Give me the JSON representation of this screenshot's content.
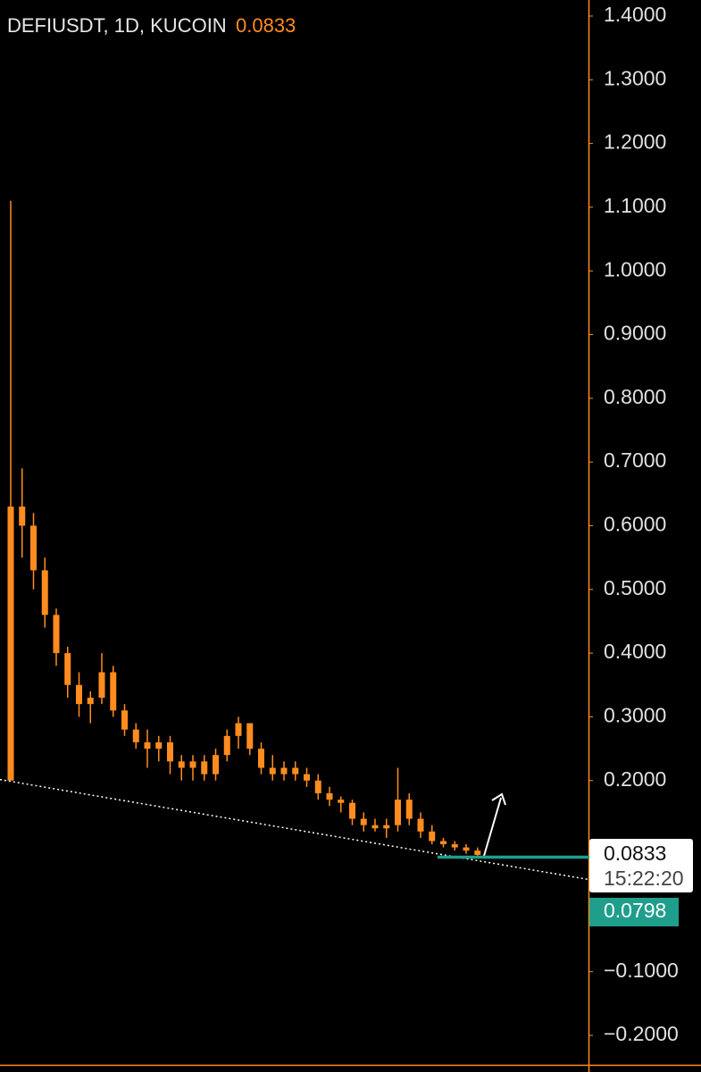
{
  "chart_data": {
    "type": "candlestick",
    "title": "DEFIUSDT, 1D, KUCOIN",
    "last_price": 0.0833,
    "last_price_label": "0.0833",
    "countdown": "15:22:20",
    "level": 0.0798,
    "level_label": "0.0798",
    "color": "#ff8c1f",
    "level_color": "#1f9e8c",
    "trendline": [
      0.2015,
      0.0445
    ],
    "open": [
      0.2,
      0.63,
      0.6,
      0.53,
      0.46,
      0.4,
      0.35,
      0.32,
      0.33,
      0.37,
      0.31,
      0.28,
      0.26,
      0.25,
      0.26,
      0.23,
      0.22,
      0.23,
      0.21,
      0.24,
      0.27,
      0.29,
      0.25,
      0.22,
      0.21,
      0.22,
      0.21,
      0.2,
      0.18,
      0.17,
      0.165,
      0.14,
      0.13,
      0.125,
      0.13,
      0.17,
      0.14,
      0.12,
      0.105,
      0.1,
      0.095,
      0.09
    ],
    "high": [
      1.11,
      0.69,
      0.62,
      0.55,
      0.47,
      0.41,
      0.37,
      0.34,
      0.4,
      0.38,
      0.32,
      0.29,
      0.28,
      0.27,
      0.27,
      0.24,
      0.24,
      0.24,
      0.25,
      0.28,
      0.3,
      0.29,
      0.26,
      0.24,
      0.23,
      0.23,
      0.22,
      0.21,
      0.19,
      0.175,
      0.17,
      0.15,
      0.14,
      0.14,
      0.22,
      0.18,
      0.15,
      0.13,
      0.11,
      0.105,
      0.1,
      0.095
    ],
    "low": [
      0.2,
      0.55,
      0.5,
      0.44,
      0.38,
      0.33,
      0.3,
      0.29,
      0.32,
      0.3,
      0.27,
      0.25,
      0.22,
      0.23,
      0.21,
      0.2,
      0.2,
      0.2,
      0.2,
      0.23,
      0.25,
      0.24,
      0.21,
      0.2,
      0.2,
      0.2,
      0.19,
      0.17,
      0.16,
      0.15,
      0.13,
      0.12,
      0.12,
      0.11,
      0.12,
      0.13,
      0.11,
      0.1,
      0.095,
      0.09,
      0.085,
      0.08
    ],
    "close": [
      0.63,
      0.6,
      0.53,
      0.46,
      0.4,
      0.35,
      0.32,
      0.33,
      0.37,
      0.31,
      0.28,
      0.26,
      0.25,
      0.26,
      0.23,
      0.22,
      0.23,
      0.21,
      0.24,
      0.27,
      0.29,
      0.25,
      0.22,
      0.21,
      0.22,
      0.21,
      0.2,
      0.18,
      0.17,
      0.165,
      0.14,
      0.13,
      0.125,
      0.13,
      0.17,
      0.14,
      0.12,
      0.105,
      0.1,
      0.095,
      0.09,
      0.0833
    ],
    "ylim": [
      -0.2575,
      1.4252
    ],
    "yticks": [
      {
        "value": 1.4,
        "label": "1.4000"
      },
      {
        "value": 1.3,
        "label": "1.3000"
      },
      {
        "value": 1.2,
        "label": "1.2000"
      },
      {
        "value": 1.1,
        "label": "1.1000"
      },
      {
        "value": 1.0,
        "label": "1.0000"
      },
      {
        "value": 0.9,
        "label": "0.9000"
      },
      {
        "value": 0.8,
        "label": "0.8000"
      },
      {
        "value": 0.7,
        "label": "0.7000"
      },
      {
        "value": 0.6,
        "label": "0.6000"
      },
      {
        "value": 0.5,
        "label": "0.5000"
      },
      {
        "value": 0.4,
        "label": "0.4000"
      },
      {
        "value": 0.3,
        "label": "0.3000"
      },
      {
        "value": 0.2,
        "label": "0.2000"
      },
      {
        "value": -0.1,
        "label": "−0.1000"
      },
      {
        "value": -0.2,
        "label": "−0.2000"
      }
    ]
  }
}
